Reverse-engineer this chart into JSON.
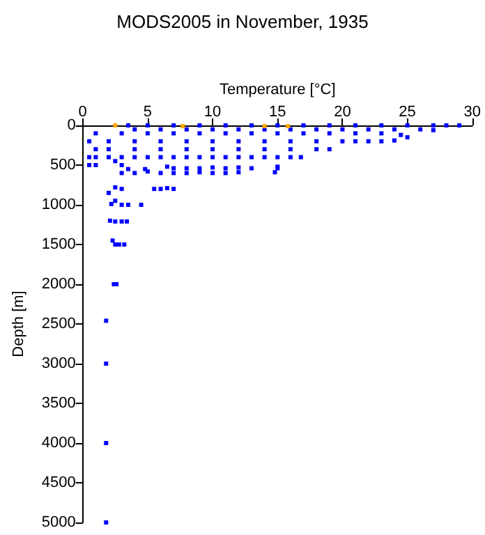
{
  "chart_data": {
    "type": "scatter",
    "title": "MODS2005 in November, 1935",
    "xlabel": "Temperature [°C]",
    "ylabel": "Depth [m]",
    "xlim": [
      0,
      30
    ],
    "xticks": [
      0,
      5,
      10,
      15,
      20,
      25,
      30
    ],
    "ylim": [
      5000,
      0
    ],
    "yticks": [
      0,
      500,
      1000,
      1500,
      2000,
      2500,
      3000,
      3500,
      4000,
      4500,
      5000
    ],
    "marker": "square",
    "series": [
      {
        "color": "#0000ff",
        "x": [
          3.5,
          5,
          7,
          9,
          11,
          13,
          15,
          17,
          19,
          21,
          23,
          25,
          27,
          28,
          29,
          4,
          6,
          8,
          10,
          12,
          14,
          16,
          18,
          20,
          22,
          24,
          26,
          27,
          1,
          3,
          5,
          7,
          9,
          11,
          13,
          15,
          17,
          19,
          21,
          23,
          24.5,
          25,
          0.5,
          2,
          4,
          6,
          8,
          10,
          12,
          14,
          16,
          18,
          20,
          21,
          22,
          23,
          24,
          1,
          2,
          4,
          6,
          8,
          10,
          12,
          14,
          16,
          18,
          19,
          0.5,
          1,
          2,
          3,
          4,
          5,
          6,
          7,
          8,
          9,
          10,
          11,
          12,
          13,
          14,
          15,
          16,
          16.8,
          0.5,
          1,
          2.5,
          3,
          3.5,
          3,
          4,
          4.8,
          5,
          6,
          7,
          8,
          9,
          10,
          11,
          12,
          6.5,
          7,
          8,
          9,
          10,
          11,
          12,
          13,
          15,
          15,
          14.8,
          2,
          2.5,
          3,
          5.5,
          6,
          6.5,
          7,
          2.2,
          2.5,
          3,
          3.5,
          4.5,
          2.1,
          2.5,
          3,
          3.4,
          2.3,
          2.5,
          2.8,
          3.2,
          2.4,
          2.6,
          1.8,
          1.8,
          1.8,
          1.8
        ],
        "values": [
          0,
          0,
          0,
          0,
          0,
          0,
          0,
          0,
          0,
          0,
          0,
          0,
          0,
          0,
          0,
          50,
          50,
          50,
          50,
          50,
          50,
          50,
          50,
          50,
          50,
          50,
          50,
          60,
          100,
          100,
          100,
          100,
          100,
          100,
          100,
          100,
          100,
          100,
          100,
          100,
          120,
          150,
          200,
          200,
          200,
          200,
          200,
          200,
          200,
          200,
          200,
          200,
          200,
          200,
          200,
          200,
          190,
          300,
          300,
          300,
          300,
          300,
          300,
          300,
          300,
          300,
          300,
          300,
          400,
          400,
          400,
          400,
          400,
          400,
          400,
          400,
          400,
          400,
          400,
          400,
          400,
          400,
          400,
          400,
          400,
          400,
          500,
          500,
          450,
          500,
          550,
          600,
          600,
          550,
          580,
          600,
          600,
          600,
          590,
          600,
          600,
          590,
          520,
          540,
          540,
          540,
          530,
          540,
          530,
          540,
          520,
          540,
          590,
          850,
          780,
          800,
          800,
          800,
          790,
          800,
          990,
          950,
          1000,
          1000,
          1000,
          1200,
          1210,
          1210,
          1210,
          1450,
          1500,
          1500,
          1500,
          2000,
          2000,
          2460,
          3000,
          4000,
          5000
        ]
      },
      {
        "color": "#ffa500",
        "x": [
          2.5,
          7.7,
          14,
          15.8
        ],
        "values": [
          0,
          10,
          10,
          10
        ]
      }
    ]
  }
}
